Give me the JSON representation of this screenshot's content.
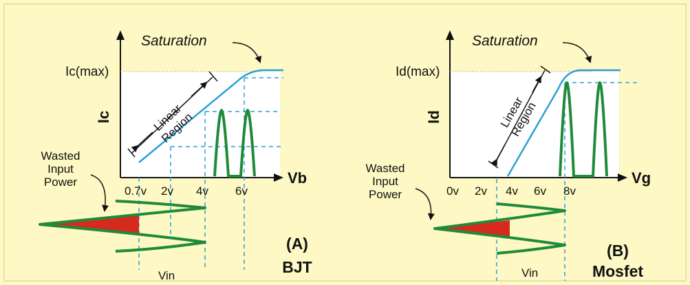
{
  "colors": {
    "background": "#fdf8c4",
    "panel_border": "#d9d49a",
    "curve": "#2a9fd6",
    "pulse": "#1f8b3a",
    "guide": "#2a9fd6",
    "wasted_fill": "#d62a1e"
  },
  "panel_a": {
    "saturation": "Saturation",
    "ymax_label": "Ic(max)",
    "ylabel": "Ic",
    "xlabel": "Vb",
    "region_line1": "Linear",
    "region_line2": "Region",
    "ticks": [
      "0.7v",
      "2v",
      "4v",
      "6v"
    ],
    "wasted_line1": "Wasted",
    "wasted_line2": "Input",
    "wasted_line3": "Power",
    "vin": "Vin",
    "caption_line1": "(A)",
    "caption_line2": "BJT"
  },
  "panel_b": {
    "saturation": "Saturation",
    "ymax_label": "Id(max)",
    "ylabel": "Id",
    "xlabel": "Vg",
    "region_line1": "Linear",
    "region_line2": "Region",
    "ticks": [
      "0v",
      "2v",
      "4v",
      "6v",
      "8v"
    ],
    "wasted_line1": "Wasted",
    "wasted_line2": "Input",
    "wasted_line3": "Power",
    "vin": "Vin",
    "caption_line1": "(B)",
    "caption_line2": "Mosfet"
  }
}
